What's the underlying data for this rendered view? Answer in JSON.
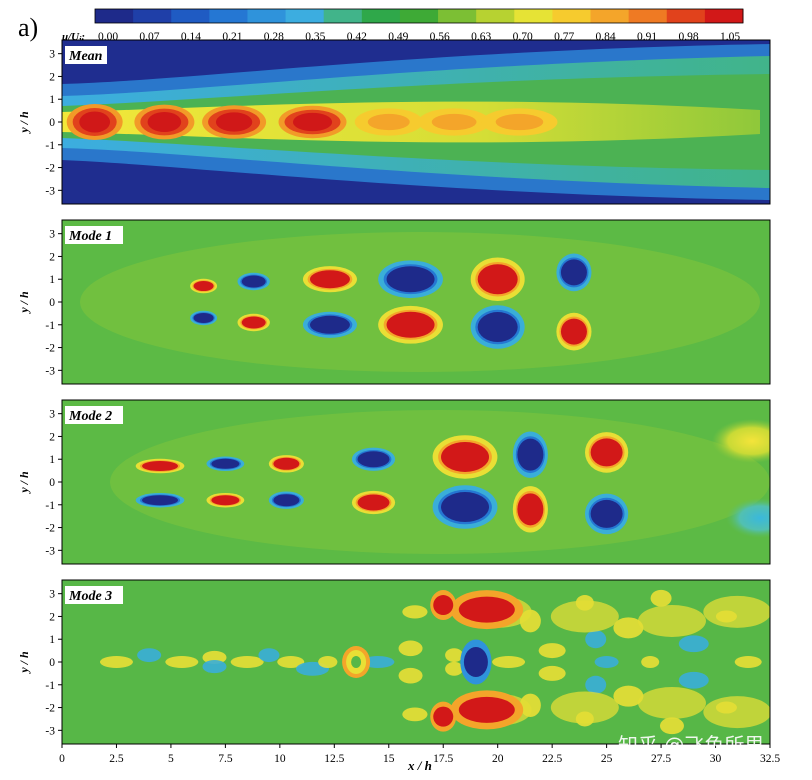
{
  "figure_label": "a)",
  "watermark": "知乎 @飞鱼所思",
  "chart_data": {
    "type": "heatmap",
    "colorbar": {
      "label": "u/U",
      "label_sub": "j",
      "ticks": [
        "0.00",
        "0.07",
        "0.14",
        "0.21",
        "0.28",
        "0.35",
        "0.42",
        "0.49",
        "0.56",
        "0.63",
        "0.70",
        "0.77",
        "0.84",
        "0.91",
        "0.98",
        "1.05"
      ],
      "range": [
        0.0,
        1.05
      ],
      "colors": [
        "#1e2a8a",
        "#1f3fa8",
        "#1f5bc3",
        "#2577d3",
        "#2f93db",
        "#3cade0",
        "#41b48a",
        "#2fa84a",
        "#3eaa36",
        "#7cbf34",
        "#b7d231",
        "#e6e335",
        "#f6cb2e",
        "#f4a52a",
        "#ef7a23",
        "#e1421c",
        "#d21818"
      ]
    },
    "xaxis": {
      "label": "x / h",
      "ticks": [
        "0",
        "2.5",
        "5",
        "7.5",
        "10",
        "12.5",
        "15",
        "17.5",
        "20",
        "22.5",
        "25",
        "27.5",
        "30",
        "32.5"
      ],
      "range": [
        0,
        32.5
      ]
    },
    "yaxis": {
      "label": "y / h",
      "ticks": [
        "3",
        "2",
        "1",
        "0",
        "-1",
        "-2",
        "-3"
      ],
      "range": [
        -3.6,
        3.6
      ]
    },
    "panels": [
      {
        "name": "Mean",
        "blobs": [
          {
            "x": 1.5,
            "y": 0,
            "v": 1.05
          },
          {
            "x": 4.7,
            "y": 0,
            "v": 1.05
          },
          {
            "x": 7.9,
            "y": 0,
            "v": 1.0
          },
          {
            "x": 11.5,
            "y": 0,
            "v": 0.98
          },
          {
            "x": 15.0,
            "y": 0,
            "v": 0.95
          },
          {
            "x": 18.0,
            "y": 0,
            "v": 0.9
          },
          {
            "x": 21.0,
            "y": 0,
            "v": 0.86
          }
        ]
      },
      {
        "name": "Mode 1",
        "blobs": [
          {
            "x": 6.5,
            "y": 0.7,
            "v": "+"
          },
          {
            "x": 6.5,
            "y": -0.7,
            "v": "-"
          },
          {
            "x": 8.8,
            "y": 0.9,
            "v": "-"
          },
          {
            "x": 8.8,
            "y": -0.9,
            "v": "+"
          },
          {
            "x": 12.3,
            "y": 1.0,
            "v": "+"
          },
          {
            "x": 12.3,
            "y": -1.0,
            "v": "-"
          },
          {
            "x": 16.0,
            "y": 1.0,
            "v": "-"
          },
          {
            "x": 16.0,
            "y": -1.0,
            "v": "+"
          },
          {
            "x": 20.0,
            "y": 1.0,
            "v": "+"
          },
          {
            "x": 20.0,
            "y": -1.1,
            "v": "-"
          },
          {
            "x": 23.5,
            "y": 1.3,
            "v": "-"
          },
          {
            "x": 23.5,
            "y": -1.3,
            "v": "+"
          }
        ]
      },
      {
        "name": "Mode 2",
        "blobs": [
          {
            "x": 4.5,
            "y": 0.7,
            "v": "+"
          },
          {
            "x": 4.5,
            "y": -0.8,
            "v": "-"
          },
          {
            "x": 7.5,
            "y": 0.8,
            "v": "-"
          },
          {
            "x": 7.5,
            "y": -0.8,
            "v": "+"
          },
          {
            "x": 10.3,
            "y": 0.8,
            "v": "+"
          },
          {
            "x": 10.3,
            "y": -0.8,
            "v": "-"
          },
          {
            "x": 14.3,
            "y": 1.0,
            "v": "-"
          },
          {
            "x": 14.3,
            "y": -0.9,
            "v": "+"
          },
          {
            "x": 18.5,
            "y": 1.1,
            "v": "+"
          },
          {
            "x": 18.5,
            "y": -1.1,
            "v": "-"
          },
          {
            "x": 21.5,
            "y": 1.2,
            "v": "-"
          },
          {
            "x": 21.5,
            "y": -1.2,
            "v": "+"
          },
          {
            "x": 25.0,
            "y": 1.3,
            "v": "+"
          },
          {
            "x": 25.0,
            "y": -1.4,
            "v": "-"
          }
        ]
      },
      {
        "name": "Mode 3",
        "blobs": [
          {
            "x": 19.5,
            "y": 2.3,
            "v": "+"
          },
          {
            "x": 19.5,
            "y": -2.1,
            "v": "+"
          },
          {
            "x": 19.0,
            "y": 0.0,
            "v": "-"
          },
          {
            "x": 17.5,
            "y": 2.5,
            "v": "+"
          },
          {
            "x": 17.5,
            "y": -2.4,
            "v": "+"
          },
          {
            "x": 13.5,
            "y": 0.0,
            "v": "+"
          }
        ]
      }
    ]
  }
}
